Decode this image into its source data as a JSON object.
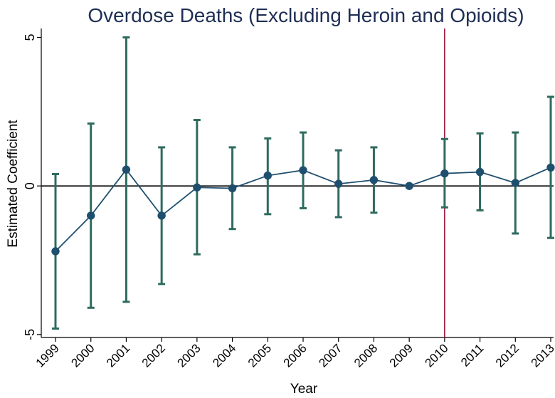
{
  "chart_data": {
    "type": "scatter",
    "title": "Overdose Deaths (Excluding Heroin and Opioids)",
    "xlabel": "Year",
    "ylabel": "Estimated Coefficient",
    "x": [
      "1999",
      "2000",
      "2001",
      "2002",
      "2003",
      "2004",
      "2005",
      "2006",
      "2007",
      "2008",
      "2009",
      "2010",
      "2011",
      "2012",
      "2013"
    ],
    "series": [
      {
        "values": [
          -2.2,
          -1.0,
          0.55,
          -1.0,
          -0.05,
          -0.08,
          0.35,
          0.53,
          0.07,
          0.2,
          0.0,
          0.42,
          0.47,
          0.1,
          0.62
        ],
        "ci_lower": [
          -4.8,
          -4.1,
          -3.9,
          -3.3,
          -2.3,
          -1.45,
          -0.95,
          -0.75,
          -1.05,
          -0.9,
          0.0,
          -0.72,
          -0.82,
          -1.6,
          -1.75
        ],
        "ci_upper": [
          0.4,
          2.1,
          5.0,
          1.3,
          2.22,
          1.3,
          1.6,
          1.8,
          1.2,
          1.3,
          0.0,
          1.58,
          1.77,
          1.8,
          3.0
        ]
      }
    ],
    "yticks": [
      "-5",
      "0",
      "5"
    ],
    "ylim": [
      -5.1,
      5.3
    ],
    "reference_lines": {
      "horizontal_y": 0,
      "vertical_x": "2010"
    },
    "colors": {
      "series": "#1f4f6e",
      "error_bars": "#2e6b5e",
      "vertical_line": "#a0143c",
      "axis": "#000000",
      "title": "#1f2f55"
    },
    "grid": false,
    "legend": "none"
  }
}
